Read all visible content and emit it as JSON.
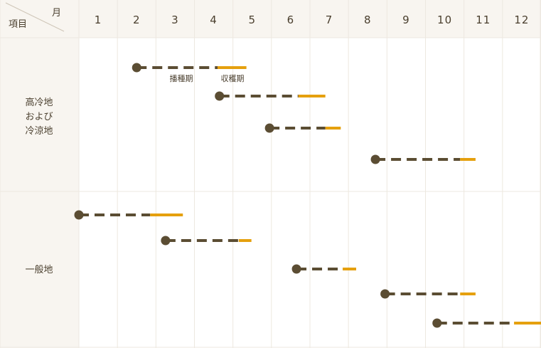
{
  "header": {
    "item_label": "項目",
    "month_label": "月",
    "months": [
      "1",
      "2",
      "3",
      "4",
      "5",
      "6",
      "7",
      "8",
      "9",
      "10",
      "11",
      "12"
    ]
  },
  "sections": [
    {
      "label_lines": [
        "高冷地",
        "および",
        "冷涼地"
      ],
      "rows": [
        {
          "sow_start": 2.0,
          "harvest_start": 4.1,
          "harvest_end": 4.85
        },
        {
          "sow_start": 4.15,
          "harvest_start": 6.2,
          "harvest_end": 6.9
        },
        {
          "sow_start": 5.45,
          "harvest_start": 6.9,
          "harvest_end": 7.3
        },
        {
          "sow_start": 8.2,
          "harvest_start": 10.4,
          "harvest_end": 10.8
        }
      ],
      "annotations": {
        "sowing": "播種期",
        "harvest": "収穫期"
      }
    },
    {
      "label_lines": [
        "一般地"
      ],
      "rows": [
        {
          "sow_start": 0.5,
          "harvest_start": 2.35,
          "harvest_end": 3.2
        },
        {
          "sow_start": 2.75,
          "harvest_start": 4.65,
          "harvest_end": 4.98
        },
        {
          "sow_start": 6.15,
          "harvest_start": 7.35,
          "harvest_end": 7.7
        },
        {
          "sow_start": 8.45,
          "harvest_start": 10.4,
          "harvest_end": 10.8
        },
        {
          "sow_start": 9.8,
          "harvest_start": 11.8,
          "harvest_end": 12.6
        }
      ]
    }
  ],
  "colors": {
    "header_bg": "#f8f5f0",
    "grid": "#ede8e0",
    "sowing": "#5b4d33",
    "harvest": "#e5a00e",
    "text": "#4a3f2e"
  }
}
